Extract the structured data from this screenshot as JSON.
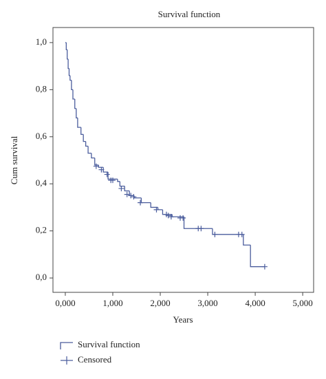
{
  "chart_data": {
    "type": "survival",
    "title": "Survival function",
    "x_label": "Years",
    "y_label": "Cum survival",
    "xlim": [
      -260,
      5230
    ],
    "ylim": [
      -0.061,
      1.064
    ],
    "xticks": [
      {
        "value": 0,
        "label": "0,000"
      },
      {
        "value": 1000,
        "label": "1,000"
      },
      {
        "value": 2000,
        "label": "2,000"
      },
      {
        "value": 3000,
        "label": "3,000"
      },
      {
        "value": 4000,
        "label": "4,000"
      },
      {
        "value": 5000,
        "label": "5,000"
      }
    ],
    "yticks": [
      {
        "value": 0,
        "label": "0,0"
      },
      {
        "value": 0.2,
        "label": "0,2"
      },
      {
        "value": 0.4,
        "label": "0,4"
      },
      {
        "value": 0.6,
        "label": "0,6"
      },
      {
        "value": 0.8,
        "label": "0,8"
      },
      {
        "value": 1,
        "label": "1,0"
      }
    ],
    "series": [
      {
        "name": "Survival function",
        "type": "step",
        "color": "#4a5c9c",
        "x": [
          0,
          20,
          40,
          60,
          80,
          100,
          130,
          160,
          200,
          230,
          260,
          330,
          380,
          430,
          480,
          550,
          620,
          700,
          800,
          900,
          1100,
          1150,
          1250,
          1350,
          1450,
          1600,
          1800,
          1950,
          2050,
          2250,
          2500,
          3100,
          3750,
          3900,
          4200
        ],
        "values": [
          1.0,
          0.97,
          0.93,
          0.89,
          0.86,
          0.84,
          0.8,
          0.76,
          0.72,
          0.68,
          0.64,
          0.61,
          0.58,
          0.56,
          0.53,
          0.51,
          0.48,
          0.47,
          0.45,
          0.42,
          0.41,
          0.39,
          0.37,
          0.35,
          0.34,
          0.32,
          0.3,
          0.29,
          0.27,
          0.26,
          0.21,
          0.185,
          0.14,
          0.048,
          0.048
        ]
      },
      {
        "name": "Censored",
        "type": "censored",
        "color": "#4a5c9c",
        "x": [
          650,
          760,
          880,
          960,
          1000,
          1180,
          1300,
          1380,
          1440,
          1580,
          1920,
          2130,
          2170,
          2230,
          2420,
          2480,
          2800,
          2860,
          3150,
          3650,
          3720,
          4200
        ],
        "values": [
          0.475,
          0.46,
          0.44,
          0.415,
          0.415,
          0.38,
          0.355,
          0.35,
          0.345,
          0.32,
          0.29,
          0.27,
          0.265,
          0.26,
          0.255,
          0.255,
          0.21,
          0.21,
          0.185,
          0.185,
          0.185,
          0.048
        ]
      }
    ]
  }
}
